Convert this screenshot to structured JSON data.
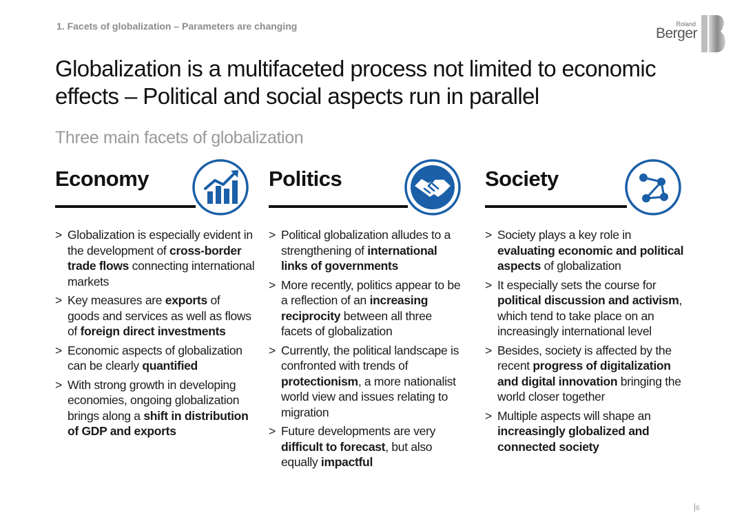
{
  "header": {
    "section": "1. Facets of globalization – Parameters are changing",
    "logo_small": "Roland",
    "logo_big": "Berger",
    "title_line1": "Globalization is a multifaceted process not limited to economic",
    "title_line2": "effects – Political and social aspects run in parallel",
    "subtitle": "Three main facets of globalization"
  },
  "columns": [
    {
      "title": "Economy",
      "icon": "chart-growth-icon",
      "bullets": [
        [
          {
            "t": "Globalization is especially evident in the development of "
          },
          {
            "t": "cross-border trade flows",
            "b": true
          },
          {
            "t": " connecting international markets"
          }
        ],
        [
          {
            "t": "Key measures are "
          },
          {
            "t": "exports",
            "b": true
          },
          {
            "t": " of goods and services as well as flows of "
          },
          {
            "t": "foreign direct investments",
            "b": true
          }
        ],
        [
          {
            "t": "Economic aspects of globalization can be clearly "
          },
          {
            "t": "quantified",
            "b": true
          }
        ],
        [
          {
            "t": "With strong growth in developing economies, ongoing globalization brings along a "
          },
          {
            "t": "shift in distribution of GDP and exports",
            "b": true
          }
        ]
      ]
    },
    {
      "title": "Politics",
      "icon": "handshake-icon",
      "bullets": [
        [
          {
            "t": "Political globalization alludes to a strengthening of "
          },
          {
            "t": "international links of governments",
            "b": true
          }
        ],
        [
          {
            "t": "More recently, politics appear to be a reflection of an "
          },
          {
            "t": "increasing reciprocity",
            "b": true
          },
          {
            "t": " between all three facets of globalization"
          }
        ],
        [
          {
            "t": "Currently, the political landscape is confronted with trends of "
          },
          {
            "t": "protectionism",
            "b": true
          },
          {
            "t": ", a more nationalist world view and issues relating to migration"
          }
        ],
        [
          {
            "t": "Future developments are very "
          },
          {
            "t": "difficult to forecast",
            "b": true
          },
          {
            "t": ", but also equally "
          },
          {
            "t": "impactful",
            "b": true
          }
        ]
      ]
    },
    {
      "title": "Society",
      "icon": "network-icon",
      "bullets": [
        [
          {
            "t": "Society plays a key role in "
          },
          {
            "t": "evaluating economic and political aspects",
            "b": true
          },
          {
            "t": " of globalization"
          }
        ],
        [
          {
            "t": "It especially sets the course for "
          },
          {
            "t": "political discussion and activism",
            "b": true
          },
          {
            "t": ", which tend to take place on an increasingly international level"
          }
        ],
        [
          {
            "t": "Besides, society is affected by the recent "
          },
          {
            "t": "progress of digitalization and digital innovation",
            "b": true
          },
          {
            "t": " bringing the world closer together"
          }
        ],
        [
          {
            "t": "Multiple aspects will shape an "
          },
          {
            "t": "increasingly globalized and connected society",
            "b": true
          }
        ]
      ]
    }
  ],
  "footer": {
    "page_number": "6"
  },
  "colors": {
    "accent_blue": "#1a5fa8",
    "rule": "#111111",
    "muted": "#999999"
  }
}
